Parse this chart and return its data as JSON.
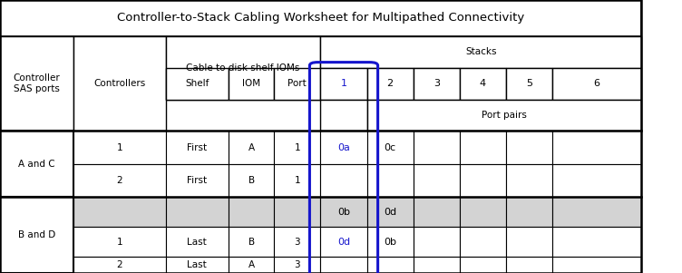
{
  "title": "Controller-to-Stack Cabling Worksheet for Multipathed Connectivity",
  "bg_color": "#ffffff",
  "gray_color": "#d3d3d3",
  "blue_color": "#1515cc",
  "black_color": "#000000",
  "fig_width": 7.52,
  "fig_height": 3.01,
  "cols": [
    0.0,
    0.108,
    0.243,
    0.335,
    0.402,
    0.47,
    0.538,
    0.606,
    0.674,
    0.742,
    0.81,
    0.94
  ],
  "rows": [
    1.0,
    0.862,
    0.745,
    0.628,
    0.5,
    0.37,
    0.245,
    0.125,
    0.0
  ],
  "stack_labels": [
    "1",
    "2",
    "3",
    "4",
    "5",
    "6"
  ],
  "data_content": {
    "AandC_row1": {
      "ctrl": "1",
      "shelf": "First",
      "iom": "A",
      "port": "1",
      "s1": "0a",
      "s2": "0c"
    },
    "AandC_row2": {
      "ctrl": "2",
      "shelf": "First",
      "iom": "B",
      "port": "1"
    },
    "gray_row": {
      "s1": "0b",
      "s2": "0d"
    },
    "BandD_row1": {
      "ctrl": "1",
      "shelf": "Last",
      "iom": "B",
      "port": "3",
      "s1": "0d",
      "s2": "0b"
    },
    "BandD_row2": {
      "ctrl": "2",
      "shelf": "Last",
      "iom": "A",
      "port": "3"
    }
  }
}
